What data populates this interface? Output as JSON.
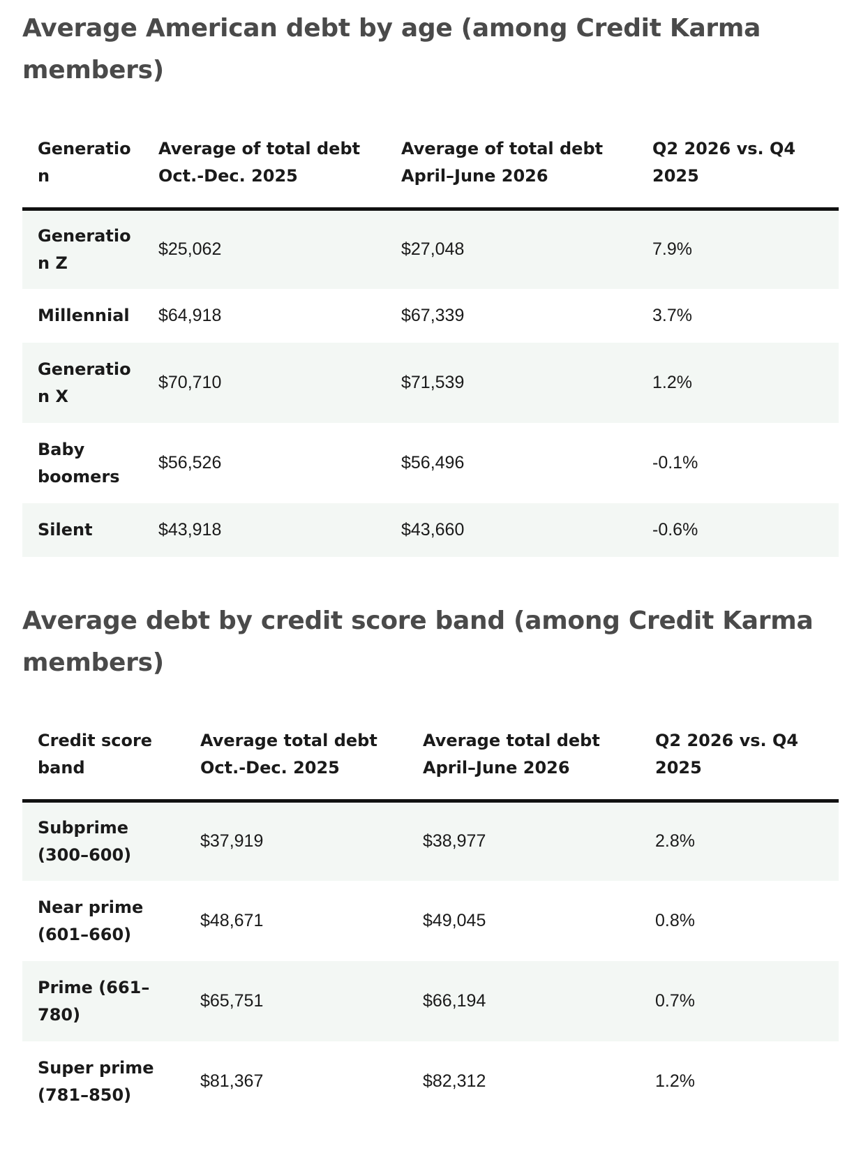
{
  "age_section": {
    "title": "Average American debt by age (among Credit Karma members)",
    "headers": [
      "Generatio n",
      "Average of total debt Oct.-Dec. 2025",
      "Average of total debt April–June 2026",
      "Q2 2026 vs. Q4 2025"
    ],
    "rows": [
      [
        "Generatio n Z",
        "$25,062",
        "$27,048",
        "7.9%"
      ],
      [
        "Millennial",
        "$64,918",
        "$67,339",
        "3.7%"
      ],
      [
        "Generatio n X",
        "$70,710",
        "$71,539",
        "1.2%"
      ],
      [
        "Baby boomers",
        "$56,526",
        "$56,496",
        "-0.1%"
      ],
      [
        "Silent",
        "$43,918",
        "$43,660",
        "-0.6%"
      ]
    ]
  },
  "credit_section": {
    "title": "Average debt by credit score band (among Credit Karma members)",
    "headers": [
      "Credit score band",
      "Average total debt Oct.-Dec. 2025",
      "Average total debt April–June 2026",
      "Q2 2026 vs. Q4 2025"
    ],
    "rows": [
      [
        "Subprime (300–600)",
        "$37,919",
        "$38,977",
        "2.8%"
      ],
      [
        "Near prime (601–660)",
        "$48,671",
        "$49,045",
        "0.8%"
      ],
      [
        "Prime (661–780)",
        "$65,751",
        "$66,194",
        "0.7%"
      ],
      [
        "Super prime (781–850)",
        "$81,367",
        "$82,312",
        "1.2%"
      ]
    ]
  },
  "colors": {
    "title": "#4a4a4a",
    "text": "#1a1a1a",
    "row_shade": "#f3f7f4",
    "header_rule": "#111111"
  }
}
